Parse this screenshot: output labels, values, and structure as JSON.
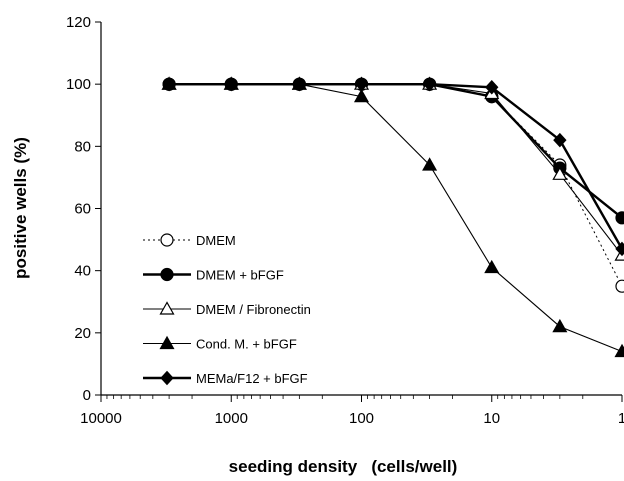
{
  "chart_data": {
    "type": "line",
    "title": "",
    "xlabel": "seeding density   (cells/well)",
    "ylabel": "positive wells (%)",
    "x_scale": "log",
    "x_reversed": true,
    "xlim": [
      10000,
      1
    ],
    "ylim": [
      0,
      120
    ],
    "x_ticks": [
      "10000",
      "1000",
      "100",
      "10",
      "1"
    ],
    "y_ticks": [
      "0",
      "20",
      "40",
      "60",
      "80",
      "100",
      "120"
    ],
    "grid": false,
    "legend_position": "left-middle",
    "series": [
      {
        "name": "DMEM",
        "marker": "circle-open",
        "line": "dotted",
        "x": [
          3000,
          1000,
          300,
          100,
          30,
          10,
          3,
          1
        ],
        "y": [
          100,
          100,
          100,
          100,
          100,
          96,
          74,
          35
        ]
      },
      {
        "name": "DMEM + bFGF",
        "marker": "circle-filled",
        "line": "solid-thick",
        "x": [
          3000,
          1000,
          300,
          100,
          30,
          10,
          3,
          1
        ],
        "y": [
          100,
          100,
          100,
          100,
          100,
          96,
          73,
          57
        ]
      },
      {
        "name": "DMEM / Fibronectin",
        "marker": "triangle-open",
        "line": "solid-thin",
        "x": [
          3000,
          1000,
          300,
          100,
          30,
          10,
          3,
          1
        ],
        "y": [
          100,
          100,
          100,
          100,
          100,
          97,
          71,
          45
        ]
      },
      {
        "name": "Cond. M. + bFGF",
        "marker": "triangle-filled",
        "line": "solid-thin",
        "x": [
          3000,
          1000,
          300,
          100,
          30,
          10,
          3,
          1
        ],
        "y": [
          100,
          100,
          100,
          96,
          74,
          41,
          22,
          14
        ]
      },
      {
        "name": "MEMa/F12 + bFGF",
        "marker": "diamond-filled",
        "line": "solid-thick",
        "x": [
          3000,
          1000,
          300,
          100,
          30,
          10,
          3,
          1
        ],
        "y": [
          100,
          100,
          100,
          100,
          100,
          99,
          82,
          47
        ]
      }
    ]
  }
}
